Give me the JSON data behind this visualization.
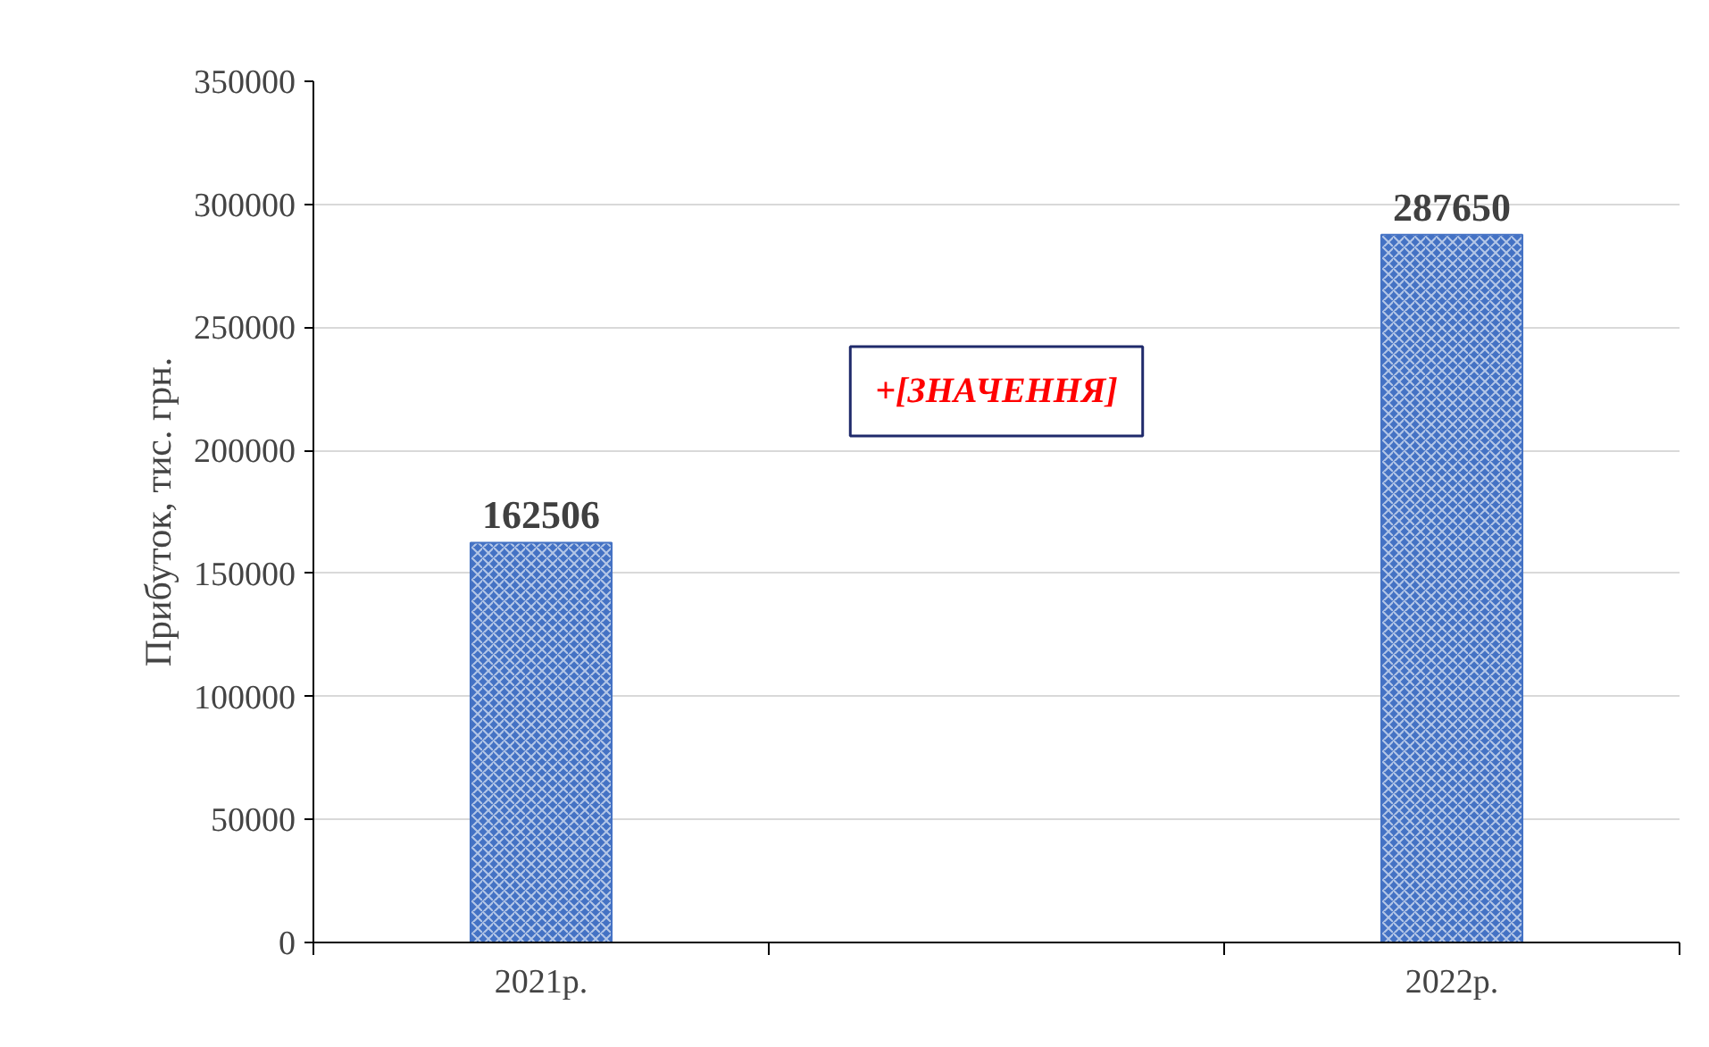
{
  "chart_data": {
    "type": "bar",
    "ylabel": "Прибуток, тис. грн.",
    "categories": [
      "2021р.",
      null,
      "2022р."
    ],
    "values": [
      162506,
      null,
      287650
    ],
    "color": "#4472c4",
    "data_labels": true,
    "annotations": [
      "+[ЗНАЧЕННЯ]"
    ],
    "ylim": [
      0,
      350000
    ],
    "yticks": [
      0,
      50000,
      100000,
      150000,
      200000,
      250000,
      300000,
      350000
    ],
    "grid": "y"
  }
}
